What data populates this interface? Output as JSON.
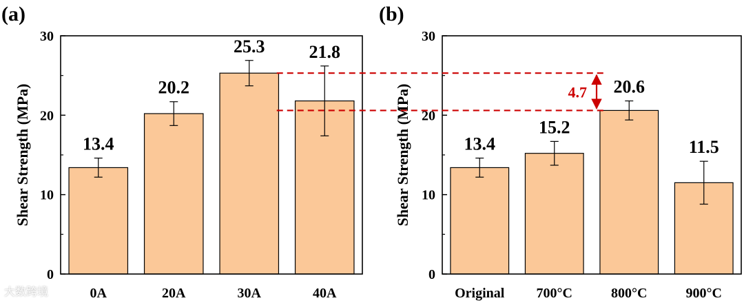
{
  "colors": {
    "bar": "#fbc898",
    "bar_edge": "#000000",
    "annotation": "#cc0000"
  },
  "watermark": "大数跨境",
  "annotation": {
    "label": "4.7",
    "from_value": 25.3,
    "to_value": 20.6
  },
  "chart_data": [
    {
      "panel": "(a)",
      "type": "bar",
      "categories": [
        "0A",
        "20A",
        "30A",
        "40A"
      ],
      "values": [
        13.4,
        20.2,
        25.3,
        21.8
      ],
      "errors": [
        1.2,
        1.5,
        1.6,
        4.4
      ],
      "value_labels": [
        "13.4",
        "20.2",
        "25.3",
        "21.8"
      ],
      "ylabel": "Shear Strength (MPa)",
      "ylim": [
        0,
        30
      ],
      "yticks": [
        0,
        10,
        20,
        30
      ],
      "ytick_labels": [
        "0",
        "10",
        "20",
        "30"
      ]
    },
    {
      "panel": "(b)",
      "type": "bar",
      "categories": [
        "Original",
        "700°C",
        "800°C",
        "900°C"
      ],
      "values": [
        13.4,
        15.2,
        20.6,
        11.5
      ],
      "errors": [
        1.2,
        1.5,
        1.2,
        2.7
      ],
      "value_labels": [
        "13.4",
        "15.2",
        "20.6",
        "11.5"
      ],
      "ylabel": "Shear Strength (MPa)",
      "ylim": [
        0,
        30
      ],
      "yticks": [
        0,
        10,
        20,
        30
      ],
      "ytick_labels": [
        "0",
        "10",
        "20",
        "30"
      ]
    }
  ]
}
